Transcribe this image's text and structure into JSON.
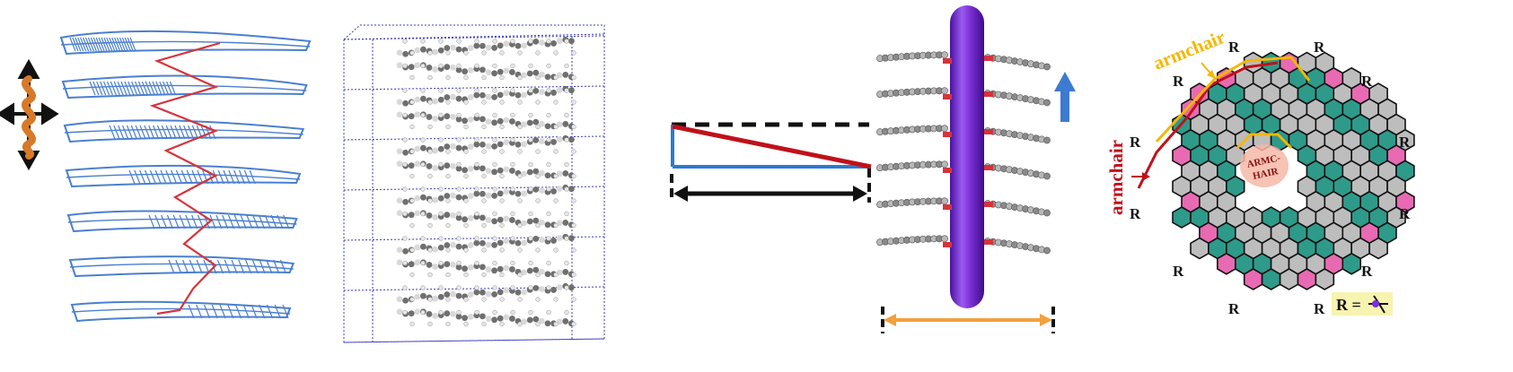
{
  "labels": {
    "armchair_top": "armchair",
    "armchair_left": "armchair",
    "armchair_inner_line1": "ARMC-",
    "armchair_inner_line2": "HAIR",
    "substituent": "R",
    "legend": "R ="
  },
  "colors": {
    "ribbon_blue": "#4a7fd0",
    "ribbon_red": "#d6333a",
    "rod_purple": "#7b2fd6",
    "arrow_blue": "#3d7bd0",
    "arrow_orange": "#f2a03d",
    "wedge_red": "#c0111a",
    "wedge_blue": "#2b7bd0",
    "hex_teal": "#2e9a8a",
    "hex_pink": "#e86ab3",
    "hex_gray": "#bdbdbd",
    "edge_yellow": "#f5b700",
    "edge_red": "#c0111a",
    "cell_blue": "#3b3bbf"
  },
  "icons": {
    "axis_cross": "four-way-arrow-icon",
    "helix": "helix-icon",
    "up_arrow": "up-arrow-icon"
  }
}
